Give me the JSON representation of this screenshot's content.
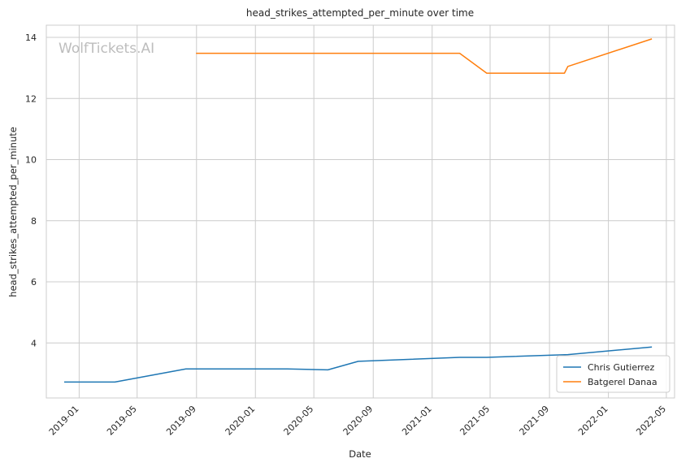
{
  "chart_data": {
    "type": "line",
    "title": "head_strikes_attempted_per_minute over time",
    "xlabel": "Date",
    "ylabel": "head_strikes_attempted_per_minute",
    "watermark": "WolfTickets.AI",
    "x_ticks": [
      "2019-01",
      "2019-05",
      "2019-09",
      "2020-01",
      "2020-05",
      "2020-09",
      "2021-01",
      "2021-05",
      "2021-09",
      "2022-01",
      "2022-05"
    ],
    "y_ticks": [
      4,
      6,
      8,
      10,
      12,
      14
    ],
    "xlim": [
      "2018-10-25",
      "2022-05-18"
    ],
    "ylim": [
      2.2,
      14.4
    ],
    "grid": true,
    "legend_position": "lower-right",
    "colors": {
      "Chris Gutierrez": "#1f77b4",
      "Batgerel Danaa": "#ff7f0e"
    },
    "series": [
      {
        "name": "Chris Gutierrez",
        "color": "#1f77b4",
        "points": [
          [
            "2018-12-01",
            2.72
          ],
          [
            "2019-03-16",
            2.72
          ],
          [
            "2019-08-10",
            3.15
          ],
          [
            "2020-03-07",
            3.15
          ],
          [
            "2020-05-30",
            3.12
          ],
          [
            "2020-08-01",
            3.4
          ],
          [
            "2021-02-27",
            3.53
          ],
          [
            "2021-04-24",
            3.53
          ],
          [
            "2021-10-09",
            3.62
          ],
          [
            "2022-04-01",
            3.87
          ]
        ]
      },
      {
        "name": "Batgerel Danaa",
        "color": "#ff7f0e",
        "points": [
          [
            "2019-08-31",
            13.48
          ],
          [
            "2021-02-27",
            13.48
          ],
          [
            "2021-04-24",
            12.83
          ],
          [
            "2021-10-02",
            12.83
          ],
          [
            "2021-10-09",
            13.05
          ],
          [
            "2022-04-01",
            13.95
          ]
        ]
      }
    ]
  }
}
